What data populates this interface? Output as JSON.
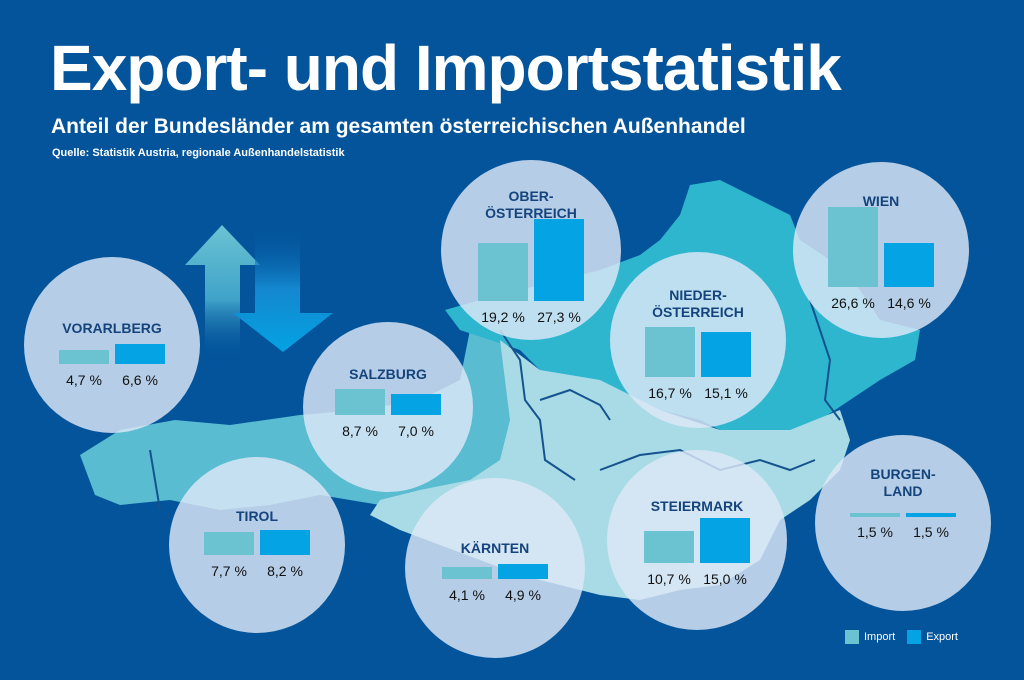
{
  "header": {
    "title": "Export- und Importstatistik",
    "subtitle": "Anteil der Bundesländer am gesamten österreichischen Außenhandel",
    "source": "Quelle: Statistik Austria, regionale Außenhandelstatistik"
  },
  "colors": {
    "background": "#03549b",
    "import": "#6bc3d2",
    "export": "#04a3e3",
    "region_label": "#15447c"
  },
  "legend": {
    "import_label": "Import",
    "export_label": "Export"
  },
  "chart_data": {
    "type": "bar",
    "title": "Export- und Importstatistik",
    "subtitle": "Anteil der Bundesländer am gesamten österreichischen Außenhandel",
    "unit": "%",
    "legend_position": "bottom-right",
    "series_names": [
      "Import",
      "Export"
    ],
    "regions": [
      {
        "name": "VORARLBERG",
        "import": 4.7,
        "export": 6.6,
        "import_label": "4,7 %",
        "export_label": "6,6 %"
      },
      {
        "name": "OBER-\nÖSTERREICH",
        "import": 19.2,
        "export": 27.3,
        "import_label": "19,2 %",
        "export_label": "27,3 %"
      },
      {
        "name": "WIEN",
        "import": 26.6,
        "export": 14.6,
        "import_label": "26,6 %",
        "export_label": "14,6 %"
      },
      {
        "name": "NIEDER-\nÖSTERREICH",
        "import": 16.7,
        "export": 15.1,
        "import_label": "16,7 %",
        "export_label": "15,1 %"
      },
      {
        "name": "SALZBURG",
        "import": 8.7,
        "export": 7.0,
        "import_label": "8,7 %",
        "export_label": "7,0 %"
      },
      {
        "name": "TIROL",
        "import": 7.7,
        "export": 8.2,
        "import_label": "7,7 %",
        "export_label": "8,2 %"
      },
      {
        "name": "KÄRNTEN",
        "import": 4.1,
        "export": 4.9,
        "import_label": "4,1 %",
        "export_label": "4,9 %"
      },
      {
        "name": "STEIERMARK",
        "import": 10.7,
        "export": 15.0,
        "import_label": "10,7 %",
        "export_label": "15,0 %"
      },
      {
        "name": "BURGEN-\nLAND",
        "import": 1.5,
        "export": 1.5,
        "import_label": "1,5 %",
        "export_label": "1,5 %"
      }
    ]
  }
}
